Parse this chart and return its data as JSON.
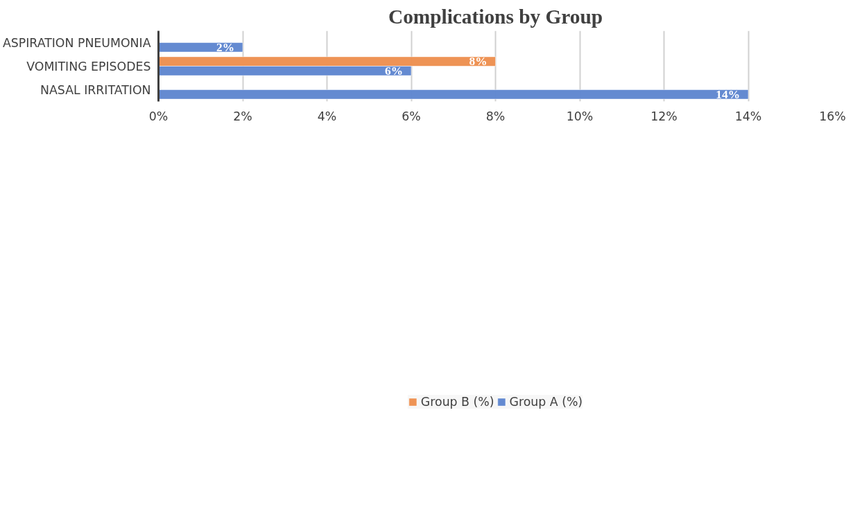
{
  "chart_data": {
    "type": "bar",
    "orientation": "horizontal",
    "title": "Complications by Group",
    "categories": [
      "ASPIRATION PNEUMONIA",
      "VOMITING EPISODES",
      "NASAL IRRITATION"
    ],
    "series": [
      {
        "name": "Group B (%)",
        "color": "#ed8f4f",
        "values": [
          null,
          8,
          null
        ],
        "value_labels": [
          null,
          "8%",
          null
        ]
      },
      {
        "name": "Group A (%)",
        "color": "#5f86cf",
        "values": [
          2,
          6,
          14
        ],
        "value_labels": [
          "2%",
          "6%",
          "14%"
        ]
      }
    ],
    "xlim": [
      0,
      16
    ],
    "xticks": [
      {
        "value": 0,
        "label": "0%"
      },
      {
        "value": 2,
        "label": "2%"
      },
      {
        "value": 4,
        "label": "4%"
      },
      {
        "value": 6,
        "label": "6%"
      },
      {
        "value": 8,
        "label": "8%"
      },
      {
        "value": 10,
        "label": "10%"
      },
      {
        "value": 12,
        "label": "12%"
      },
      {
        "value": 14,
        "label": "14%"
      },
      {
        "value": 16,
        "label": "16%"
      }
    ],
    "grid": "x",
    "legend": "bottom"
  }
}
